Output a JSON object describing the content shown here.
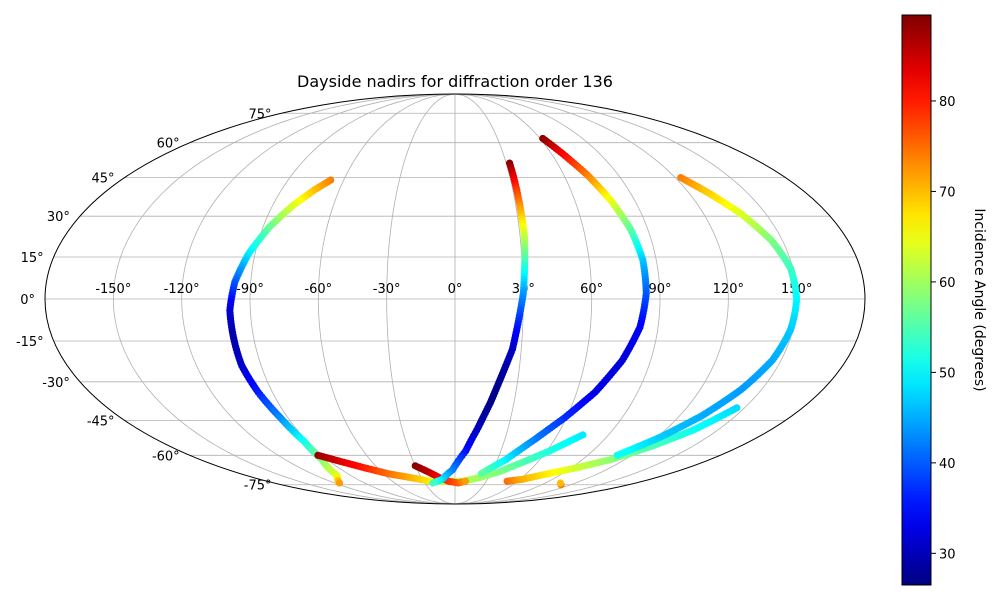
{
  "chart_data": {
    "type": "scatter",
    "projection": "mollweide",
    "title": "Dayside nadirs for diffraction order 136",
    "xlabel": "",
    "ylabel": "",
    "longitude_ticks": [
      -150,
      -120,
      -90,
      -60,
      -30,
      0,
      30,
      60,
      90,
      120,
      150
    ],
    "latitude_ticks": [
      -75,
      -60,
      -45,
      -30,
      -15,
      0,
      15,
      30,
      45,
      60,
      75
    ],
    "longitude_tick_labels": [
      "-150°",
      "-120°",
      "-90°",
      "-60°",
      "-30°",
      "0°",
      "30°",
      "60°",
      "90°",
      "120°",
      "150°"
    ],
    "latitude_tick_labels": [
      "-75°",
      "-60°",
      "-45°",
      "-30°",
      "-15°",
      "0°",
      "15°",
      "30°",
      "45°",
      "60°",
      "75°"
    ],
    "grid": true,
    "colormap": "jet",
    "colorbar": {
      "label": "Incidence Angle (degrees)",
      "min": 26.5,
      "max": 89.5,
      "ticks": [
        30,
        40,
        50,
        60,
        70,
        80
      ],
      "tick_labels": [
        "30",
        "40",
        "50",
        "60",
        "70",
        "80"
      ]
    },
    "series": [
      {
        "points": [
          {
            "lon": -67,
            "lat": 44,
            "inc": 74
          },
          {
            "lon": -73,
            "lat": 40,
            "inc": 70
          },
          {
            "lon": -80,
            "lat": 34,
            "inc": 64
          },
          {
            "lon": -87,
            "lat": 26,
            "inc": 57
          },
          {
            "lon": -93,
            "lat": 16,
            "inc": 49
          },
          {
            "lon": -97,
            "lat": 6,
            "inc": 40
          },
          {
            "lon": -99,
            "lat": -4,
            "inc": 32
          },
          {
            "lon": -99,
            "lat": -14,
            "inc": 29
          },
          {
            "lon": -99,
            "lat": -24,
            "inc": 31
          },
          {
            "lon": -97,
            "lat": -34,
            "inc": 36
          },
          {
            "lon": -94,
            "lat": -44,
            "inc": 43
          },
          {
            "lon": -92,
            "lat": -54,
            "inc": 51
          },
          {
            "lon": -94,
            "lat": -62,
            "inc": 58
          },
          {
            "lon": -102,
            "lat": -70,
            "inc": 64
          },
          {
            "lon": -115,
            "lat": -74,
            "inc": 72
          }
        ]
      },
      {
        "points": [
          {
            "lon": -93,
            "lat": -60,
            "inc": 88
          },
          {
            "lon": -82,
            "lat": -63,
            "inc": 84
          },
          {
            "lon": -70,
            "lat": -66,
            "inc": 80
          },
          {
            "lon": -56,
            "lat": -69,
            "inc": 75
          },
          {
            "lon": -40,
            "lat": -71,
            "inc": 71
          },
          {
            "lon": -24,
            "lat": -73,
            "inc": 67
          },
          {
            "lon": -8,
            "lat": -73,
            "inc": 63
          },
          {
            "lon": 8,
            "lat": -73,
            "inc": 61
          },
          {
            "lon": 22,
            "lat": -71,
            "inc": 60
          },
          {
            "lon": 36,
            "lat": -68,
            "inc": 58
          },
          {
            "lon": 50,
            "lat": -63,
            "inc": 55
          },
          {
            "lon": 62,
            "lat": -58,
            "inc": 52
          },
          {
            "lon": 75,
            "lat": -51,
            "inc": 49
          }
        ]
      },
      {
        "points": [
          {
            "lon": -30,
            "lat": -65,
            "inc": 89
          },
          {
            "lon": -22,
            "lat": -68,
            "inc": 86
          },
          {
            "lon": -14,
            "lat": -71,
            "inc": 82
          },
          {
            "lon": -6,
            "lat": -73,
            "inc": 79
          },
          {
            "lon": 3,
            "lat": -74,
            "inc": 76
          },
          {
            "lon": 10,
            "lat": -73,
            "inc": 72
          }
        ]
      },
      {
        "points": [
          {
            "lon": 32,
            "lat": 51,
            "inc": 89
          },
          {
            "lon": 32,
            "lat": 42,
            "inc": 80
          },
          {
            "lon": 32,
            "lat": 32,
            "inc": 71
          },
          {
            "lon": 32,
            "lat": 22,
            "inc": 62
          },
          {
            "lon": 31,
            "lat": 12,
            "inc": 53
          },
          {
            "lon": 30,
            "lat": 2,
            "inc": 44
          },
          {
            "lon": 28,
            "lat": -8,
            "inc": 37
          },
          {
            "lon": 26,
            "lat": -18,
            "inc": 31
          },
          {
            "lon": 22,
            "lat": -28,
            "inc": 28
          },
          {
            "lon": 18,
            "lat": -38,
            "inc": 27
          },
          {
            "lon": 13,
            "lat": -48,
            "inc": 30
          },
          {
            "lon": 7,
            "lat": -58,
            "inc": 35
          },
          {
            "lon": -2,
            "lat": -67,
            "inc": 42
          },
          {
            "lon": -12,
            "lat": -72,
            "inc": 48
          },
          {
            "lon": -22,
            "lat": -74,
            "inc": 54
          }
        ]
      },
      {
        "points": [
          {
            "lon": 62,
            "lat": 62,
            "inc": 89
          },
          {
            "lon": 67,
            "lat": 55,
            "inc": 82
          },
          {
            "lon": 73,
            "lat": 46,
            "inc": 74
          },
          {
            "lon": 78,
            "lat": 36,
            "inc": 65
          },
          {
            "lon": 82,
            "lat": 25,
            "inc": 56
          },
          {
            "lon": 84,
            "lat": 14,
            "inc": 47
          },
          {
            "lon": 84,
            "lat": 2,
            "inc": 40
          },
          {
            "lon": 82,
            "lat": -10,
            "inc": 34
          },
          {
            "lon": 77,
            "lat": -22,
            "inc": 32
          },
          {
            "lon": 69,
            "lat": -34,
            "inc": 33
          },
          {
            "lon": 59,
            "lat": -44,
            "inc": 37
          },
          {
            "lon": 48,
            "lat": -53,
            "inc": 42
          },
          {
            "lon": 36,
            "lat": -62,
            "inc": 49
          },
          {
            "lon": 22,
            "lat": -69,
            "inc": 56
          }
        ]
      },
      {
        "points": [
          {
            "lon": 50,
            "lat": -73,
            "inc": 75
          },
          {
            "lon": 62,
            "lat": -72,
            "inc": 71
          },
          {
            "lon": 78,
            "lat": -69,
            "inc": 67
          },
          {
            "lon": 94,
            "lat": -66,
            "inc": 63
          },
          {
            "lon": 110,
            "lat": -62,
            "inc": 59
          },
          {
            "lon": 124,
            "lat": -56,
            "inc": 55
          },
          {
            "lon": 136,
            "lat": -49,
            "inc": 51
          },
          {
            "lon": 146,
            "lat": -40,
            "inc": 48
          }
        ]
      },
      {
        "points": [
          {
            "lon": 110,
            "lat": -75,
            "inc": 74
          },
          {
            "lon": 105,
            "lat": -74,
            "inc": 70
          }
        ]
      },
      {
        "points": [
          {
            "lon": 123,
            "lat": 45,
            "inc": 74
          },
          {
            "lon": 130,
            "lat": 39,
            "inc": 69
          },
          {
            "lon": 138,
            "lat": 31,
            "inc": 64
          },
          {
            "lon": 145,
            "lat": 21,
            "inc": 58
          },
          {
            "lon": 149,
            "lat": 11,
            "inc": 54
          },
          {
            "lon": 150,
            "lat": 0,
            "inc": 50
          },
          {
            "lon": 149,
            "lat": -11,
            "inc": 47
          },
          {
            "lon": 146,
            "lat": -22,
            "inc": 45
          },
          {
            "lon": 140,
            "lat": -33,
            "inc": 44
          },
          {
            "lon": 132,
            "lat": -43,
            "inc": 45
          },
          {
            "lon": 122,
            "lat": -52,
            "inc": 47
          },
          {
            "lon": 110,
            "lat": -60,
            "inc": 51
          }
        ]
      }
    ]
  }
}
